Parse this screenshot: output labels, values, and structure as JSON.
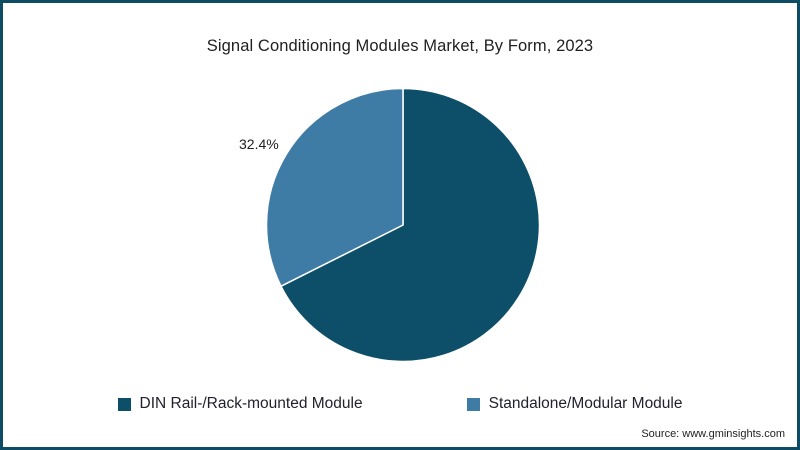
{
  "title": "Signal Conditioning Modules Market, By Form, 2023",
  "source": "Source: www.gminsights.com",
  "chart_data": {
    "type": "pie",
    "title": "Signal Conditioning Modules Market, By Form, 2023",
    "legend_position": "bottom",
    "start_angle": "top, clockwise",
    "slices": [
      {
        "label": "DIN Rail-/Rack-mounted Module",
        "value": 67.6,
        "color": "#0d4f68",
        "data_label": ""
      },
      {
        "label": "Standalone/Modular Module",
        "value": 32.4,
        "color": "#3e7ca6",
        "data_label": "32.4%"
      }
    ]
  },
  "colors": {
    "border": "#0e4c63",
    "background": "#ffffff",
    "text": "#1f1f1f"
  }
}
